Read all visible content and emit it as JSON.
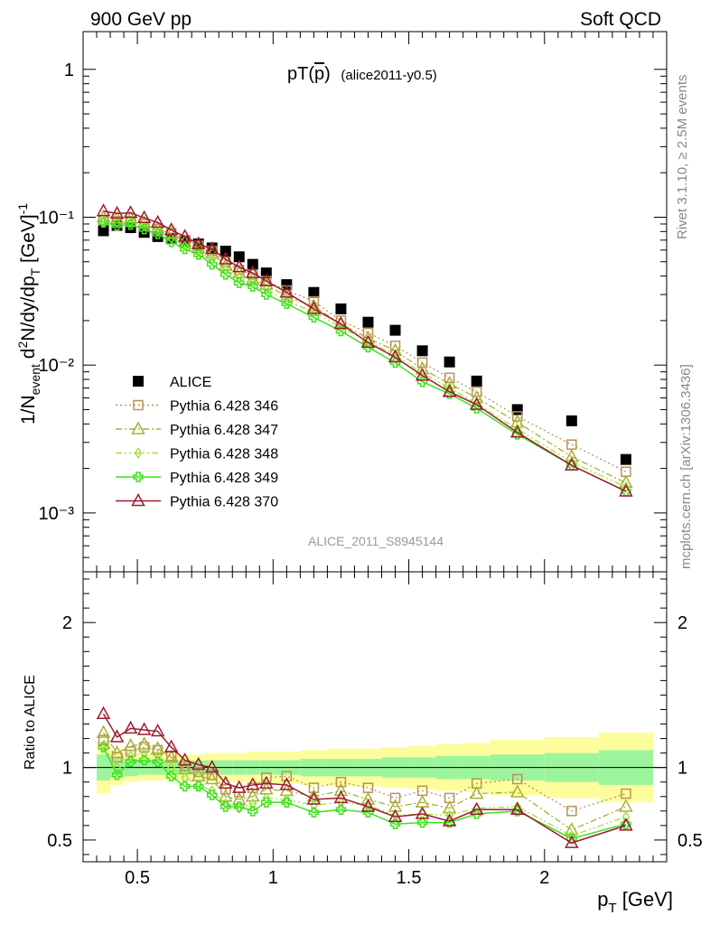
{
  "header": {
    "left": "900 GeV pp",
    "right": "Soft QCD"
  },
  "side_labels": {
    "rivet": "Rivet 3.1.10, ≥ 2.5M events",
    "mcplots": "mcplots.cern.ch [arXiv:1306.3436]"
  },
  "chart_data": [
    {
      "type": "line",
      "title": "pT(p̄) (alice2011-y0.5)",
      "title_main": "pT(",
      "title_sym": "p",
      "title_close": ")",
      "title_sub": "(alice2011-y0.5)",
      "watermark": "ALICE_2011_S8945144",
      "xlabel": "p_T [GeV]",
      "ylabel": "1/N_event d²N/dy/dp_T [GeV]⁻¹",
      "ylog": true,
      "xlim": [
        0.3,
        2.45
      ],
      "ylim": [
        0.0004,
        1.8
      ],
      "x_ticks": [
        0.5,
        1.0,
        1.5,
        2.0
      ],
      "x_tick_labels": [
        "0.5",
        "1",
        "1.5",
        "2"
      ],
      "y_ticks": [
        0.001,
        0.01,
        0.1,
        1
      ],
      "y_tick_labels": [
        "10⁻³",
        "10⁻²",
        "10⁻¹",
        "1"
      ],
      "x": [
        0.375,
        0.425,
        0.475,
        0.525,
        0.575,
        0.625,
        0.675,
        0.725,
        0.775,
        0.825,
        0.875,
        0.925,
        0.975,
        1.05,
        1.15,
        1.25,
        1.35,
        1.45,
        1.55,
        1.65,
        1.75,
        1.9,
        2.1,
        2.3
      ],
      "series": [
        {
          "name": "ALICE",
          "color": "#000000",
          "marker": "square-filled",
          "values": [
            0.081,
            0.088,
            0.085,
            0.079,
            0.074,
            0.072,
            0.069,
            0.066,
            0.062,
            0.059,
            0.054,
            0.048,
            0.042,
            0.035,
            0.031,
            0.024,
            0.0195,
            0.0172,
            0.0125,
            0.0105,
            0.0078,
            0.005,
            0.0042,
            0.0023
          ]
        },
        {
          "name": "Pythia 6.428 346",
          "color": "#b8925a",
          "marker": "square-open",
          "line": "dotted",
          "values": [
            0.096,
            0.094,
            0.094,
            0.09,
            0.083,
            0.078,
            0.07,
            0.064,
            0.059,
            0.05,
            0.044,
            0.041,
            0.037,
            0.032,
            0.027,
            0.02,
            0.0165,
            0.0135,
            0.0104,
            0.0082,
            0.0066,
            0.0045,
            0.0029,
            0.0019
          ]
        },
        {
          "name": "Pythia 6.428 347",
          "color": "#a8b030",
          "marker": "triangle-open",
          "line": "dashdot",
          "values": [
            0.1,
            0.098,
            0.098,
            0.092,
            0.084,
            0.077,
            0.068,
            0.062,
            0.057,
            0.047,
            0.042,
            0.038,
            0.035,
            0.029,
            0.025,
            0.019,
            0.0152,
            0.0125,
            0.0094,
            0.0075,
            0.006,
            0.0041,
            0.0024,
            0.0016
          ]
        },
        {
          "name": "Pythia 6.428 348",
          "color": "#a5e040",
          "marker": "diamond-open",
          "line": "dashdotdot",
          "values": [
            0.093,
            0.092,
            0.092,
            0.087,
            0.08,
            0.072,
            0.064,
            0.058,
            0.052,
            0.044,
            0.039,
            0.036,
            0.033,
            0.027,
            0.023,
            0.018,
            0.0145,
            0.0117,
            0.0088,
            0.007,
            0.0055,
            0.0037,
            0.0022,
            0.0015
          ]
        },
        {
          "name": "Pythia 6.428 349",
          "color": "#40e020",
          "marker": "cross-open",
          "line": "solid",
          "values": [
            0.092,
            0.088,
            0.089,
            0.083,
            0.077,
            0.068,
            0.061,
            0.056,
            0.048,
            0.041,
            0.036,
            0.034,
            0.03,
            0.026,
            0.021,
            0.017,
            0.0132,
            0.0104,
            0.0077,
            0.0064,
            0.0051,
            0.0034,
            0.0021,
            0.0014
          ]
        },
        {
          "name": "Pythia 6.428 370",
          "color": "#9e1a2e",
          "marker": "triangle-open",
          "line": "solid",
          "values": [
            0.11,
            0.106,
            0.107,
            0.099,
            0.092,
            0.082,
            0.074,
            0.066,
            0.061,
            0.052,
            0.046,
            0.042,
            0.037,
            0.031,
            0.024,
            0.019,
            0.0142,
            0.0113,
            0.0085,
            0.0066,
            0.0054,
            0.0035,
            0.0021,
            0.0014
          ]
        }
      ]
    },
    {
      "type": "line",
      "ylabel": "Ratio to ALICE",
      "xlabel": "p_T [GeV]",
      "xlim": [
        0.3,
        2.45
      ],
      "ylim": [
        0.35,
        2.35
      ],
      "y_ticks": [
        0.5,
        1,
        2
      ],
      "y_tick_labels": [
        "0.5",
        "1",
        "2"
      ],
      "x_ticks": [
        0.5,
        1.0,
        1.5,
        2.0
      ],
      "x_tick_labels": [
        "0.5",
        "1",
        "1.5",
        "2"
      ],
      "x": [
        0.375,
        0.425,
        0.475,
        0.525,
        0.575,
        0.625,
        0.675,
        0.725,
        0.775,
        0.825,
        0.875,
        0.925,
        0.975,
        1.05,
        1.15,
        1.25,
        1.35,
        1.45,
        1.55,
        1.65,
        1.75,
        1.9,
        2.1,
        2.3
      ],
      "bin_edges": [
        0.35,
        0.4,
        0.45,
        0.5,
        0.55,
        0.6,
        0.65,
        0.7,
        0.75,
        0.8,
        0.85,
        0.9,
        0.95,
        1.0,
        1.1,
        1.2,
        1.3,
        1.4,
        1.5,
        1.6,
        1.7,
        1.8,
        2.0,
        2.2,
        2.4
      ],
      "band_inner": [
        0.09,
        0.07,
        0.06,
        0.05,
        0.05,
        0.05,
        0.05,
        0.05,
        0.05,
        0.05,
        0.05,
        0.05,
        0.05,
        0.05,
        0.06,
        0.06,
        0.06,
        0.07,
        0.07,
        0.08,
        0.08,
        0.09,
        0.1,
        0.12
      ],
      "band_outer": [
        0.18,
        0.12,
        0.1,
        0.09,
        0.09,
        0.09,
        0.09,
        0.09,
        0.1,
        0.1,
        0.1,
        0.11,
        0.11,
        0.11,
        0.12,
        0.13,
        0.13,
        0.14,
        0.15,
        0.16,
        0.17,
        0.19,
        0.21,
        0.24
      ],
      "band_inner_color": "#9cf59c",
      "band_outer_color": "#fdfd9c",
      "series": [
        {
          "name": "Pythia 6.428 346",
          "color": "#b8925a",
          "marker": "square-open",
          "line": "dotted",
          "values": [
            1.19,
            1.07,
            1.11,
            1.14,
            1.12,
            1.08,
            1.01,
            0.97,
            0.95,
            0.85,
            0.83,
            0.86,
            0.93,
            0.94,
            0.86,
            0.9,
            0.86,
            0.79,
            0.84,
            0.79,
            0.89,
            0.92,
            0.7,
            0.82
          ]
        },
        {
          "name": "Pythia 6.428 347",
          "color": "#a8b030",
          "marker": "triangle-open",
          "line": "dashdot",
          "values": [
            1.24,
            1.1,
            1.15,
            1.16,
            1.13,
            1.07,
            0.99,
            0.94,
            0.92,
            0.8,
            0.78,
            0.8,
            0.85,
            0.84,
            0.8,
            0.84,
            0.78,
            0.73,
            0.76,
            0.72,
            0.82,
            0.83,
            0.57,
            0.73
          ]
        },
        {
          "name": "Pythia 6.428 348",
          "color": "#a5e040",
          "marker": "diamond-open",
          "line": "dashdotdot",
          "values": [
            1.15,
            1.0,
            1.08,
            1.1,
            1.08,
            1.0,
            0.93,
            0.88,
            0.84,
            0.75,
            0.72,
            0.75,
            0.79,
            0.78,
            0.74,
            0.76,
            0.74,
            0.67,
            0.68,
            0.67,
            0.72,
            0.73,
            0.53,
            0.66
          ]
        },
        {
          "name": "Pythia 6.428 349",
          "color": "#40e020",
          "marker": "cross-open",
          "line": "solid",
          "values": [
            1.14,
            0.95,
            1.04,
            1.05,
            1.04,
            0.94,
            0.87,
            0.87,
            0.81,
            0.73,
            0.73,
            0.7,
            0.76,
            0.76,
            0.69,
            0.71,
            0.69,
            0.61,
            0.62,
            0.62,
            0.68,
            0.7,
            0.51,
            0.61
          ]
        },
        {
          "name": "Pythia 6.428 370",
          "color": "#9e1a2e",
          "marker": "triangle-open",
          "line": "solid",
          "values": [
            1.37,
            1.21,
            1.27,
            1.26,
            1.25,
            1.14,
            1.05,
            1.02,
            1.0,
            0.89,
            0.86,
            0.88,
            0.89,
            0.88,
            0.78,
            0.79,
            0.73,
            0.66,
            0.68,
            0.63,
            0.71,
            0.71,
            0.48,
            0.6
          ]
        }
      ]
    }
  ]
}
